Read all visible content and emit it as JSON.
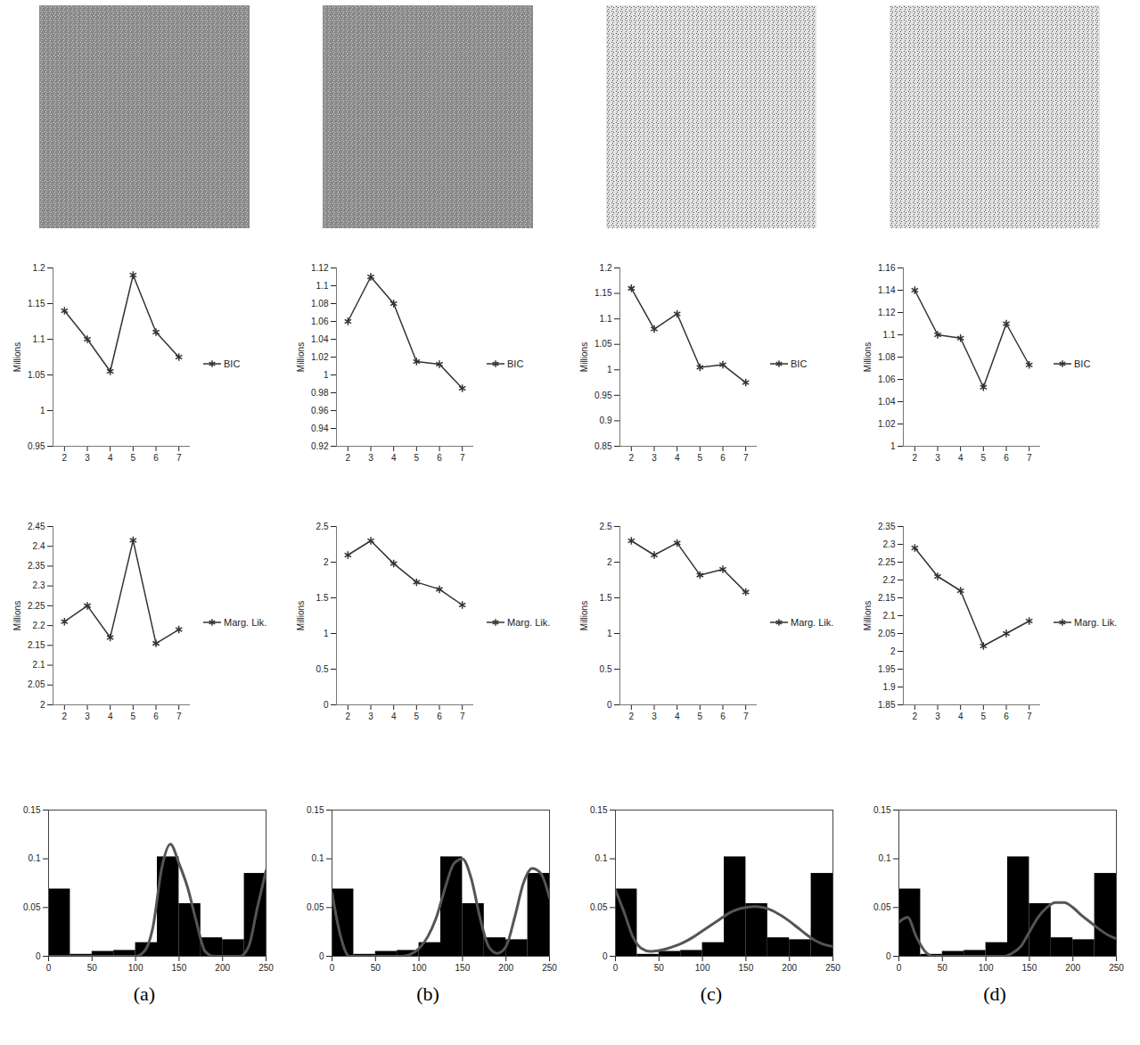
{
  "chart_data": [
    {
      "panel": "(a)",
      "charts": [
        {
          "type": "line",
          "x": [
            2,
            3,
            4,
            5,
            6,
            7
          ],
          "xlim": [
            1.5,
            7.5
          ],
          "xticks": [
            2,
            3,
            4,
            5,
            6,
            7
          ],
          "ylabel": "Millions",
          "ylim": [
            0.95,
            1.2
          ],
          "yticks": [
            0.95,
            1,
            1.05,
            1.1,
            1.15,
            1.2
          ],
          "legend": "right",
          "series": [
            {
              "name": "BIC",
              "color": "#333333",
              "marker": "asterisk",
              "values": [
                1.14,
                1.1,
                1.055,
                1.19,
                1.11,
                1.075
              ]
            }
          ]
        },
        {
          "type": "line",
          "x": [
            2,
            3,
            4,
            5,
            6,
            7
          ],
          "xlim": [
            1.5,
            7.5
          ],
          "xticks": [
            2,
            3,
            4,
            5,
            6,
            7
          ],
          "ylabel": "Millions",
          "ylim": [
            2,
            2.45
          ],
          "yticks": [
            2,
            2.05,
            2.1,
            2.15,
            2.2,
            2.25,
            2.3,
            2.35,
            2.4,
            2.45
          ],
          "legend": "right",
          "series": [
            {
              "name": "Marg. Lik.",
              "color": "#333333",
              "marker": "asterisk",
              "values": [
                2.21,
                2.25,
                2.17,
                2.415,
                2.155,
                2.19
              ]
            }
          ]
        },
        {
          "type": "histogram",
          "bins": [
            0,
            25,
            50,
            75,
            100,
            125,
            150,
            175,
            200,
            225,
            250
          ],
          "counts": [
            0.069,
            0.002,
            0.005,
            0.006,
            0.014,
            0.102,
            0.054,
            0.019,
            0.017,
            0.085
          ],
          "color": "#000000",
          "xlim": [
            0,
            250
          ],
          "xticks": [
            0,
            50,
            100,
            150,
            200,
            250
          ],
          "ylim": [
            0,
            0.15
          ],
          "yticks": [
            0,
            0.05,
            0.1,
            0.15
          ],
          "curve": {
            "x": [
              0,
              10,
              20,
              30,
              40,
              50,
              60,
              70,
              80,
              90,
              100,
              110,
              120,
              130,
              140,
              150,
              160,
              170,
              180,
              190,
              200,
              210,
              220,
              230,
              240,
              250
            ],
            "values": [
              0,
              0,
              0,
              0,
              0,
              0,
              0,
              0,
              0,
              0,
              0,
              0.005,
              0.03,
              0.09,
              0.115,
              0.095,
              0.07,
              0.035,
              0.005,
              0,
              0,
              0,
              0,
              0.01,
              0.05,
              0.088
            ],
            "color": "#555555"
          }
        }
      ]
    },
    {
      "panel": "(b)",
      "charts": [
        {
          "type": "line",
          "x": [
            2,
            3,
            4,
            5,
            6,
            7
          ],
          "xlim": [
            1.5,
            7.5
          ],
          "xticks": [
            2,
            3,
            4,
            5,
            6,
            7
          ],
          "ylabel": "Millions",
          "ylim": [
            0.92,
            1.12
          ],
          "yticks": [
            0.92,
            0.94,
            0.96,
            0.98,
            1,
            1.02,
            1.04,
            1.06,
            1.08,
            1.1,
            1.12
          ],
          "legend": "right",
          "series": [
            {
              "name": "BIC",
              "color": "#333333",
              "marker": "asterisk",
              "values": [
                1.06,
                1.11,
                1.08,
                1.015,
                1.012,
                0.985
              ]
            }
          ]
        },
        {
          "type": "line",
          "x": [
            2,
            3,
            4,
            5,
            6,
            7
          ],
          "xlim": [
            1.5,
            7.5
          ],
          "xticks": [
            2,
            3,
            4,
            5,
            6,
            7
          ],
          "ylabel": "Millions",
          "ylim": [
            0,
            2.5
          ],
          "yticks": [
            0,
            0.5,
            1,
            1.5,
            2,
            2.5
          ],
          "legend": "right",
          "series": [
            {
              "name": "Marg. Lik.",
              "color": "#333333",
              "marker": "asterisk",
              "values": [
                2.1,
                2.3,
                1.98,
                1.72,
                1.62,
                1.4
              ]
            }
          ]
        },
        {
          "type": "histogram",
          "bins": [
            0,
            25,
            50,
            75,
            100,
            125,
            150,
            175,
            200,
            225,
            250
          ],
          "counts": [
            0.069,
            0.002,
            0.005,
            0.006,
            0.014,
            0.102,
            0.054,
            0.019,
            0.017,
            0.085
          ],
          "color": "#000000",
          "xlim": [
            0,
            250
          ],
          "xticks": [
            0,
            50,
            100,
            150,
            200,
            250
          ],
          "ylim": [
            0,
            0.15
          ],
          "yticks": [
            0,
            0.05,
            0.1,
            0.15
          ],
          "curve": {
            "x": [
              0,
              10,
              20,
              30,
              40,
              50,
              60,
              70,
              80,
              90,
              100,
              110,
              120,
              130,
              140,
              150,
              160,
              170,
              180,
              190,
              200,
              210,
              220,
              230,
              240,
              250
            ],
            "values": [
              0.065,
              0.02,
              0,
              0,
              0,
              0,
              0,
              0,
              0,
              0.002,
              0.008,
              0.02,
              0.04,
              0.07,
              0.095,
              0.1,
              0.08,
              0.04,
              0.01,
              0.003,
              0.01,
              0.04,
              0.075,
              0.09,
              0.085,
              0.06
            ],
            "color": "#555555"
          }
        }
      ]
    },
    {
      "panel": "(c)",
      "charts": [
        {
          "type": "line",
          "x": [
            2,
            3,
            4,
            5,
            6,
            7
          ],
          "xlim": [
            1.5,
            7.5
          ],
          "xticks": [
            2,
            3,
            4,
            5,
            6,
            7
          ],
          "ylabel": "Millions",
          "ylim": [
            0.85,
            1.2
          ],
          "yticks": [
            0.85,
            0.9,
            0.95,
            1,
            1.05,
            1.1,
            1.15,
            1.2
          ],
          "legend": "right",
          "series": [
            {
              "name": "BIC",
              "color": "#333333",
              "marker": "asterisk",
              "values": [
                1.16,
                1.08,
                1.11,
                1.005,
                1.01,
                0.975
              ]
            }
          ]
        },
        {
          "type": "line",
          "x": [
            2,
            3,
            4,
            5,
            6,
            7
          ],
          "xlim": [
            1.5,
            7.5
          ],
          "xticks": [
            2,
            3,
            4,
            5,
            6,
            7
          ],
          "ylabel": "Millions",
          "ylim": [
            0,
            2.5
          ],
          "yticks": [
            0,
            0.5,
            1,
            1.5,
            2,
            2.5
          ],
          "legend": "right",
          "series": [
            {
              "name": "Marg. Lik.",
              "color": "#333333",
              "marker": "asterisk",
              "values": [
                2.3,
                2.1,
                2.27,
                1.82,
                1.9,
                1.58
              ]
            }
          ]
        },
        {
          "type": "histogram",
          "bins": [
            0,
            25,
            50,
            75,
            100,
            125,
            150,
            175,
            200,
            225,
            250
          ],
          "counts": [
            0.069,
            0.002,
            0.005,
            0.006,
            0.014,
            0.102,
            0.054,
            0.019,
            0.017,
            0.085
          ],
          "color": "#000000",
          "xlim": [
            0,
            250
          ],
          "xticks": [
            0,
            50,
            100,
            150,
            200,
            250
          ],
          "ylim": [
            0,
            0.15
          ],
          "yticks": [
            0,
            0.05,
            0.1,
            0.15
          ],
          "curve": {
            "x": [
              0,
              10,
              20,
              30,
              40,
              50,
              60,
              70,
              80,
              90,
              100,
              110,
              120,
              130,
              140,
              150,
              160,
              170,
              180,
              190,
              200,
              210,
              220,
              230,
              240,
              250
            ],
            "values": [
              0.068,
              0.045,
              0.02,
              0.008,
              0.005,
              0.006,
              0.008,
              0.011,
              0.015,
              0.02,
              0.026,
              0.032,
              0.038,
              0.044,
              0.048,
              0.05,
              0.051,
              0.05,
              0.047,
              0.042,
              0.036,
              0.029,
              0.022,
              0.016,
              0.012,
              0.01
            ],
            "color": "#555555"
          }
        }
      ]
    },
    {
      "panel": "(d)",
      "charts": [
        {
          "type": "line",
          "x": [
            2,
            3,
            4,
            5,
            6,
            7
          ],
          "xlim": [
            1.5,
            7.5
          ],
          "xticks": [
            2,
            3,
            4,
            5,
            6,
            7
          ],
          "ylabel": "Millions",
          "ylim": [
            1,
            1.16
          ],
          "yticks": [
            1,
            1.02,
            1.04,
            1.06,
            1.08,
            1.1,
            1.12,
            1.14,
            1.16
          ],
          "legend": "right",
          "series": [
            {
              "name": "BIC",
              "color": "#333333",
              "marker": "asterisk",
              "values": [
                1.14,
                1.1,
                1.097,
                1.053,
                1.11,
                1.073
              ]
            }
          ]
        },
        {
          "type": "line",
          "x": [
            2,
            3,
            4,
            5,
            6,
            7
          ],
          "xlim": [
            1.5,
            7.5
          ],
          "xticks": [
            2,
            3,
            4,
            5,
            6,
            7
          ],
          "ylabel": "Millions",
          "ylim": [
            1.85,
            2.35
          ],
          "yticks": [
            1.85,
            1.9,
            1.95,
            2,
            2.05,
            2.1,
            2.15,
            2.2,
            2.25,
            2.3,
            2.35
          ],
          "legend": "right",
          "series": [
            {
              "name": "Marg. Lik.",
              "color": "#333333",
              "marker": "asterisk",
              "values": [
                2.29,
                2.21,
                2.17,
                2.015,
                2.05,
                2.085
              ]
            }
          ]
        },
        {
          "type": "histogram",
          "bins": [
            0,
            25,
            50,
            75,
            100,
            125,
            150,
            175,
            200,
            225,
            250
          ],
          "counts": [
            0.069,
            0.002,
            0.005,
            0.006,
            0.014,
            0.102,
            0.054,
            0.019,
            0.017,
            0.085
          ],
          "color": "#000000",
          "xlim": [
            0,
            250
          ],
          "xticks": [
            0,
            50,
            100,
            150,
            200,
            250
          ],
          "ylim": [
            0,
            0.15
          ],
          "yticks": [
            0,
            0.05,
            0.1,
            0.15
          ],
          "curve": {
            "x": [
              0,
              10,
              20,
              30,
              40,
              50,
              60,
              70,
              80,
              90,
              100,
              110,
              120,
              130,
              140,
              150,
              160,
              170,
              180,
              190,
              200,
              210,
              220,
              230,
              240,
              250
            ],
            "values": [
              0.035,
              0.04,
              0.02,
              0.005,
              0,
              0,
              0,
              0,
              0,
              0,
              0,
              0,
              0,
              0.003,
              0.01,
              0.025,
              0.04,
              0.05,
              0.055,
              0.055,
              0.05,
              0.042,
              0.035,
              0.028,
              0.022,
              0.018
            ],
            "color": "#555555"
          }
        }
      ]
    }
  ]
}
